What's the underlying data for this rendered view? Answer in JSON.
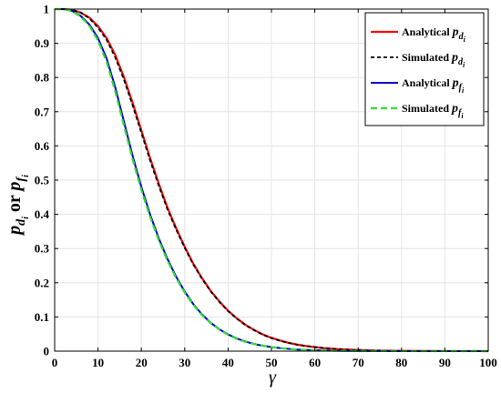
{
  "chart_data": {
    "type": "line",
    "title": "",
    "xlabel": "γ",
    "ylabel": {
      "part1": "p",
      "sub1": "d",
      "subsub1": "i",
      "middle": " or ",
      "part2": "p",
      "sub2": "f",
      "subsub2": "i"
    },
    "xlim": [
      0,
      100
    ],
    "ylim": [
      0,
      1
    ],
    "xticks": [
      "0",
      "10",
      "20",
      "30",
      "40",
      "50",
      "60",
      "70",
      "80",
      "90",
      "100"
    ],
    "yticks": [
      "0",
      "0.1",
      "0.2",
      "0.3",
      "0.4",
      "0.5",
      "0.6",
      "0.7",
      "0.8",
      "0.9",
      "1"
    ],
    "grid": true,
    "legend_position": "top-right",
    "x": [
      0,
      2,
      4,
      6,
      8,
      10,
      12,
      14,
      16,
      18,
      20,
      22,
      24,
      26,
      28,
      30,
      32,
      34,
      36,
      38,
      40,
      42,
      44,
      46,
      48,
      50,
      52,
      54,
      56,
      58,
      60,
      62,
      64,
      66,
      68,
      70,
      72,
      74,
      76,
      78,
      80,
      82,
      84,
      86,
      88,
      90,
      92,
      94,
      96,
      98,
      100
    ],
    "series": [
      {
        "legend_text": "Analytical",
        "legend_symbol": "p",
        "legend_sub": "d",
        "legend_subsub": "i",
        "color": "#ff0000",
        "dash": "solid",
        "width": 2.2,
        "values": [
          1.0,
          1.0,
          0.998,
          0.99,
          0.975,
          0.95,
          0.915,
          0.865,
          0.8,
          0.725,
          0.645,
          0.565,
          0.49,
          0.42,
          0.36,
          0.305,
          0.255,
          0.213,
          0.176,
          0.145,
          0.118,
          0.096,
          0.077,
          0.062,
          0.049,
          0.039,
          0.031,
          0.024,
          0.019,
          0.015,
          0.012,
          0.009,
          0.007,
          0.0055,
          0.0043,
          0.0033,
          0.0025,
          0.0019,
          0.0015,
          0.0011,
          0.0008,
          0.0006,
          0.0005,
          0.0004,
          0.0003,
          0.0002,
          0.0002,
          0.0001,
          0.0001,
          0.0001,
          0.0
        ]
      },
      {
        "legend_text": "Simulated",
        "legend_symbol": "p",
        "legend_sub": "d",
        "legend_subsub": "i",
        "color": "#000000",
        "dash": "4,3",
        "width": 1.8,
        "values": [
          1.0,
          1.0,
          0.998,
          0.99,
          0.973,
          0.946,
          0.91,
          0.858,
          0.793,
          0.718,
          0.638,
          0.558,
          0.484,
          0.415,
          0.356,
          0.302,
          0.253,
          0.211,
          0.175,
          0.144,
          0.117,
          0.095,
          0.076,
          0.061,
          0.048,
          0.038,
          0.03,
          0.024,
          0.019,
          0.015,
          0.012,
          0.009,
          0.007,
          0.0055,
          0.0043,
          0.0033,
          0.0025,
          0.0019,
          0.0015,
          0.0011,
          0.0008,
          0.0006,
          0.0005,
          0.0004,
          0.0003,
          0.0002,
          0.0002,
          0.0001,
          0.0001,
          0.0001,
          0.0
        ]
      },
      {
        "legend_text": "Analytical",
        "legend_symbol": "p",
        "legend_sub": "f",
        "legend_subsub": "i",
        "color": "#0000cc",
        "dash": "solid",
        "width": 2.0,
        "values": [
          1.0,
          1.0,
          0.995,
          0.98,
          0.955,
          0.915,
          0.855,
          0.77,
          0.67,
          0.57,
          0.48,
          0.4,
          0.33,
          0.27,
          0.218,
          0.174,
          0.137,
          0.107,
          0.083,
          0.064,
          0.049,
          0.037,
          0.028,
          0.021,
          0.016,
          0.012,
          0.009,
          0.0065,
          0.0048,
          0.0035,
          0.0026,
          0.0019,
          0.0014,
          0.001,
          0.0007,
          0.0005,
          0.0004,
          0.0003,
          0.0002,
          0.0001,
          0.0001,
          0.0001,
          0.0,
          0.0,
          0.0,
          0.0,
          0.0,
          0.0,
          0.0,
          0.0,
          0.0
        ]
      },
      {
        "legend_text": "Simulated",
        "legend_symbol": "p",
        "legend_sub": "f",
        "legend_subsub": "i",
        "color": "#33dd33",
        "dash": "7,4",
        "width": 2.2,
        "values": [
          1.0,
          1.0,
          0.994,
          0.978,
          0.951,
          0.908,
          0.845,
          0.758,
          0.658,
          0.56,
          0.471,
          0.393,
          0.324,
          0.265,
          0.214,
          0.171,
          0.135,
          0.105,
          0.082,
          0.063,
          0.048,
          0.036,
          0.027,
          0.021,
          0.016,
          0.012,
          0.009,
          0.0065,
          0.0048,
          0.0035,
          0.0026,
          0.0019,
          0.0014,
          0.001,
          0.0007,
          0.0005,
          0.0004,
          0.0003,
          0.0002,
          0.0001,
          0.0001,
          0.0001,
          0.0,
          0.0,
          0.0,
          0.0,
          0.0,
          0.0,
          0.0,
          0.0,
          0.0
        ]
      }
    ]
  }
}
